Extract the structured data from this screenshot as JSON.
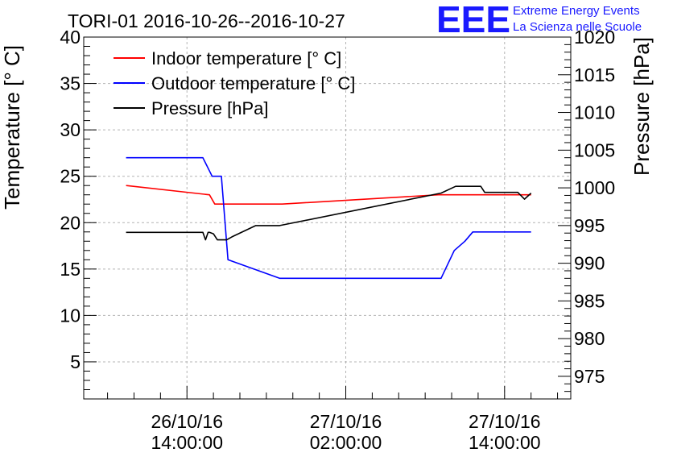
{
  "chart_data": {
    "type": "line",
    "title": "TORI-01 2016-10-26--2016-10-27",
    "logo": {
      "mark": "EEE",
      "line1": "Extreme Energy Events",
      "line2": "La Scienza nelle Scuole"
    },
    "ylabel_left": "Temperature [° C]",
    "ylabel_right": "Pressure [hPa]",
    "ylim_left": [
      1,
      40
    ],
    "ylim_right": [
      972,
      1020
    ],
    "xlim_hours": [
      -7.8,
      29
    ],
    "left_ticks": [
      "5",
      "10",
      "15",
      "20",
      "25",
      "30",
      "35",
      "40"
    ],
    "right_ticks": [
      "975",
      "980",
      "985",
      "990",
      "995",
      "1000",
      "1005",
      "1010",
      "1015",
      "1020"
    ],
    "x_ticks": [
      {
        "hour": 0,
        "date": "26/10/16",
        "time": "14:00:00"
      },
      {
        "hour": 12,
        "date": "27/10/16",
        "time": "02:00:00"
      },
      {
        "hour": 24,
        "date": "27/10/16",
        "time": "14:00:00"
      }
    ],
    "x_unit_note": "hours relative to 26/10/16 14:00:00",
    "colors": {
      "indoor": "#ff0000",
      "outdoor": "#0000ff",
      "pressure": "#000000"
    },
    "series": [
      {
        "name": "Indoor temperature [° C]",
        "axis": "left",
        "x": [
          -4.6,
          1.7,
          2.1,
          7.2,
          19.0,
          26.0
        ],
        "y": [
          24.0,
          23.0,
          22.0,
          22.0,
          23.0,
          23.0
        ]
      },
      {
        "name": "Outdoor temperature [° C]",
        "axis": "left",
        "x": [
          -4.6,
          1.2,
          1.9,
          2.6,
          3.1,
          7.0,
          19.2,
          20.2,
          21.0,
          21.6,
          26.0
        ],
        "y": [
          27.0,
          27.0,
          25.0,
          25.0,
          16.0,
          14.0,
          14.0,
          17.0,
          18.0,
          19.0,
          19.0
        ]
      },
      {
        "name": "Pressure [hPa]",
        "axis": "right",
        "x": [
          -4.6,
          1.2,
          1.4,
          1.6,
          1.7,
          2.0,
          2.3,
          3.0,
          3.4,
          5.2,
          7.0,
          19.2,
          20.3,
          22.2,
          22.5,
          23.3,
          25.0,
          25.5,
          26.0
        ],
        "y": [
          994.1,
          994.1,
          993.1,
          994.1,
          994.1,
          993.9,
          993.1,
          993.1,
          993.5,
          995.0,
          995.0,
          999.3,
          1000.2,
          1000.2,
          999.4,
          999.4,
          999.4,
          998.5,
          999.3
        ]
      }
    ]
  }
}
